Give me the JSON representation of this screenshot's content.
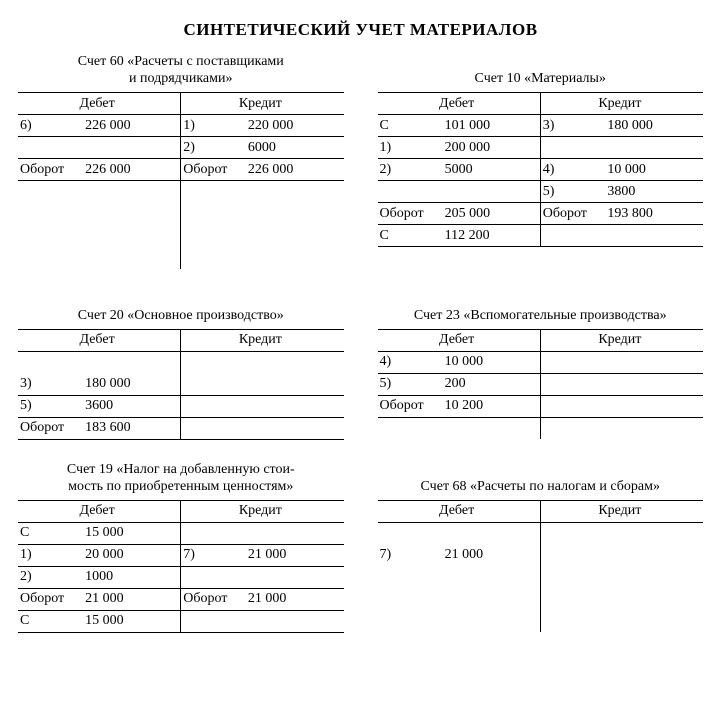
{
  "title": "СИНТЕТИЧЕСКИЙ УЧЕТ МАТЕРИАЛОВ",
  "labels": {
    "debit": "Дебет",
    "credit": "Кредит"
  },
  "accounts": {
    "a60": {
      "title_l1": "Счет 60 «Расчеты с поставщиками",
      "title_l2": "и подрядчиками»",
      "d": [
        {
          "l": "6)",
          "a": "226 000"
        }
      ],
      "c": [
        {
          "l": "1)",
          "a": "220 000"
        },
        {
          "l": "2)",
          "a": "6000"
        }
      ],
      "d_turnover_l": "Оборот",
      "d_turnover_a": "226 000",
      "c_turnover_l": "Оборот",
      "c_turnover_a": "226 000"
    },
    "a10": {
      "title": "Счет 10 «Материалы»",
      "d": [
        {
          "l": "С",
          "a": "101 000"
        },
        {
          "l": "1)",
          "a": "200 000"
        },
        {
          "l": "2)",
          "a": "5000"
        }
      ],
      "c": [
        {
          "l": "3)",
          "a": "180 000"
        },
        {
          "l": "",
          "a": ""
        },
        {
          "l": "4)",
          "a": "10 000"
        },
        {
          "l": "5)",
          "a": "3800"
        }
      ],
      "d_turnover_l": "Оборот",
      "d_turnover_a": "205 000",
      "c_turnover_l": "Оборот",
      "c_turnover_a": "193 800",
      "d_bal_l": "С",
      "d_bal_a": "112 200"
    },
    "a20": {
      "title": "Счет 20 «Основное производство»",
      "d": [
        {
          "l": "",
          "a": ""
        },
        {
          "l": "3)",
          "a": "180 000"
        },
        {
          "l": "5)",
          "a": "3600"
        }
      ],
      "d_turnover_l": "Оборот",
      "d_turnover_a": "183 600"
    },
    "a23": {
      "title": "Счет 23 «Вспомогательные производства»",
      "d": [
        {
          "l": "4)",
          "a": "10 000"
        },
        {
          "l": "5)",
          "a": "200"
        }
      ],
      "d_turnover_l": "Оборот",
      "d_turnover_a": "10 200"
    },
    "a19": {
      "title_l1": "Счет 19 «Налог на добавленную стои-",
      "title_l2": "мость по приобретенным ценностям»",
      "d": [
        {
          "l": "С",
          "a": "15 000"
        },
        {
          "l": "1)",
          "a": "20 000"
        },
        {
          "l": "2)",
          "a": "1000"
        }
      ],
      "c": [
        {
          "l": "",
          "a": ""
        },
        {
          "l": "7)",
          "a": "21 000"
        }
      ],
      "d_turnover_l": "Оборот",
      "d_turnover_a": "21 000",
      "c_turnover_l": "Оборот",
      "c_turnover_a": "21 000",
      "d_bal_l": "С",
      "d_bal_a": "15 000"
    },
    "a68": {
      "title": "Счет 68 «Расчеты по налогам и сборам»",
      "d": [
        {
          "l": "",
          "a": ""
        },
        {
          "l": "7)",
          "a": "21 000"
        }
      ]
    }
  }
}
